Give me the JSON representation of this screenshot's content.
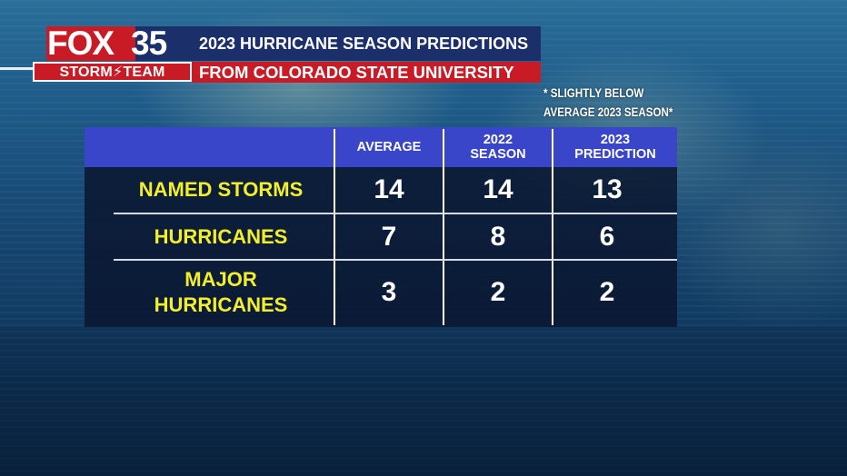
{
  "branding": {
    "logo_word": "FOX",
    "logo_number": "35",
    "logo_tagline": "STORM⚡TEAM"
  },
  "header": {
    "title": "2023 HURRICANE SEASON PREDICTIONS",
    "subtitle": "FROM COLORADO STATE UNIVERSITY"
  },
  "note": {
    "line1": "* SLIGHTLY BELOW",
    "line2": "AVERAGE 2023 SEASON*"
  },
  "table": {
    "columns": [
      {
        "line1": "AVERAGE",
        "line2": ""
      },
      {
        "line1": "2022",
        "line2": "SEASON"
      },
      {
        "line1": "2023",
        "line2": "PREDICTION"
      }
    ],
    "rows": [
      {
        "line1": "NAMED STORMS",
        "line2": "",
        "values": [
          "14",
          "14",
          "13"
        ]
      },
      {
        "line1": "HURRICANES",
        "line2": "",
        "values": [
          "7",
          "8",
          "6"
        ]
      },
      {
        "line1": "MAJOR",
        "line2": "HURRICANES",
        "values": [
          "3",
          "2",
          "2"
        ]
      }
    ]
  },
  "colors": {
    "header_blue": "#1b2f6a",
    "header_red": "#c81b25",
    "table_header": "#3a46c9",
    "row_label": "#f3ee2a"
  }
}
